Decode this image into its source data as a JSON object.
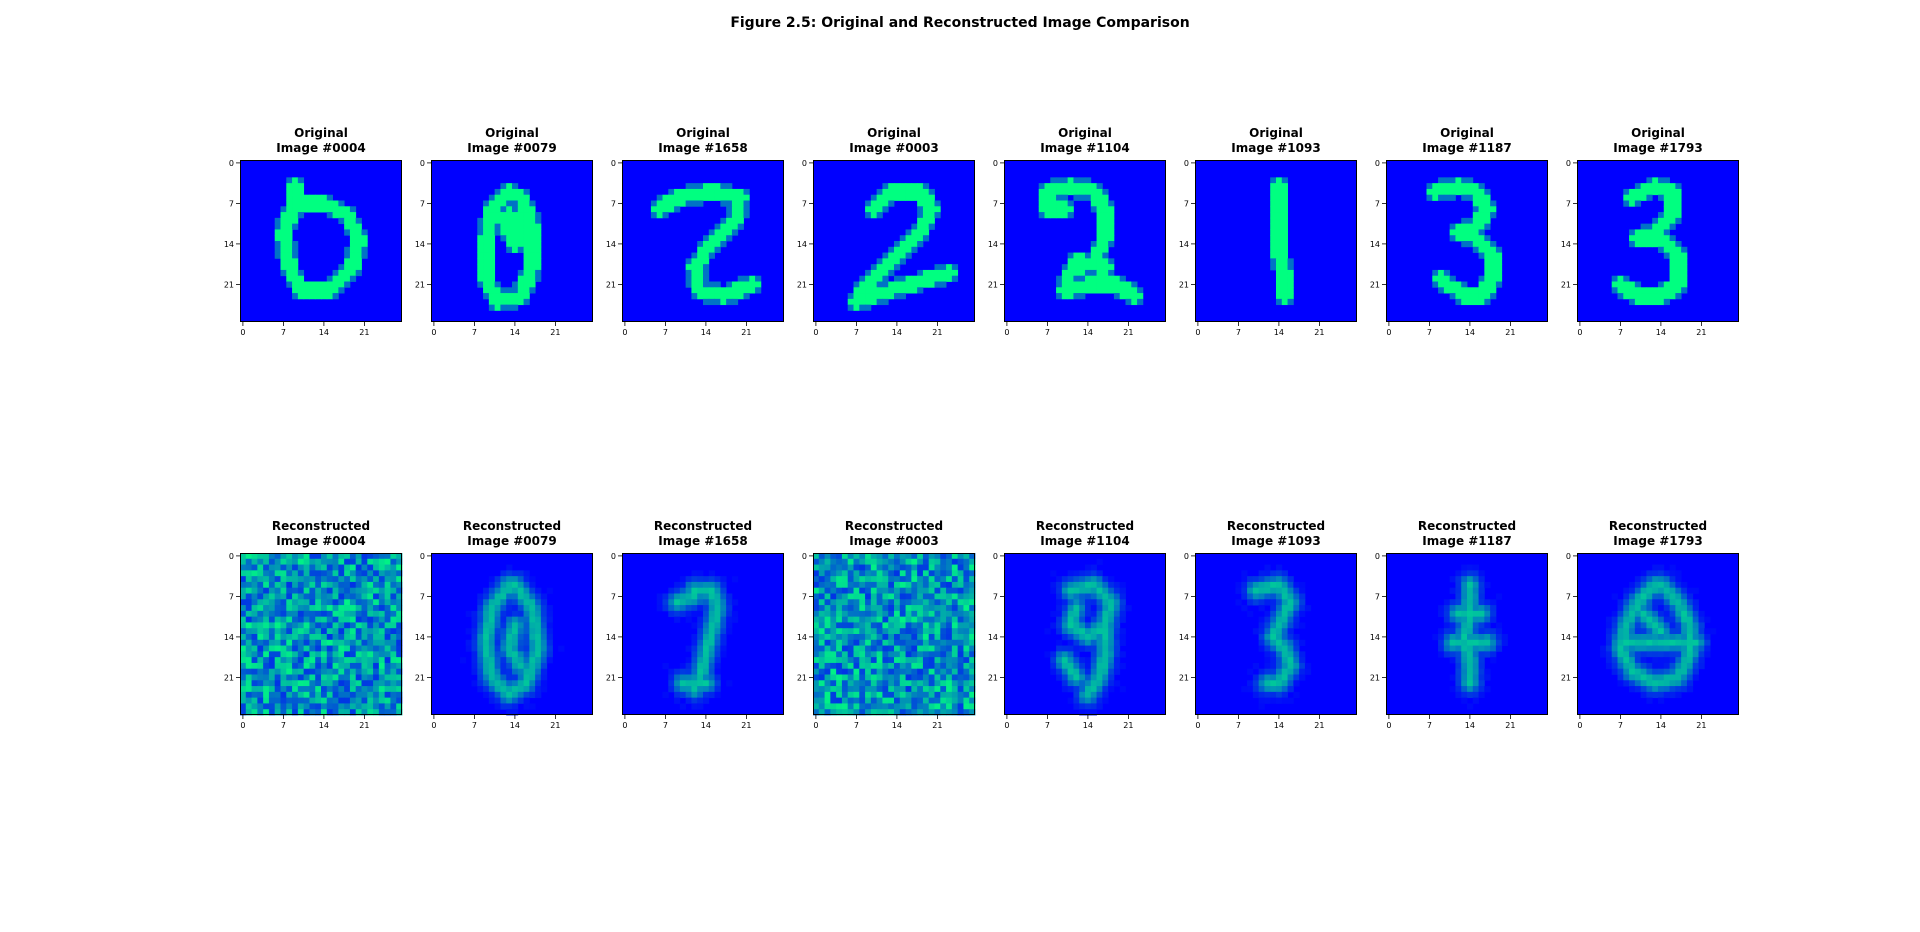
{
  "figure_title": "Figure 2.5: Original and Reconstructed Image Comparison",
  "colors": {
    "background": "#0000ff",
    "stroke": "#00ee80",
    "axis": "#000000"
  },
  "chart_data": {
    "type": "heatmap",
    "colormap": "winter",
    "image_size": [
      28,
      28
    ],
    "xticks": [
      "0",
      "7",
      "14",
      "21"
    ],
    "yticks": [
      "0",
      "7",
      "14",
      "21"
    ],
    "xlim": [
      -0.5,
      27.5
    ],
    "ylim": [
      27.5,
      -0.5
    ],
    "rows": [
      {
        "row_label": "Original",
        "panels": [
          {
            "line1": "Original",
            "line2": "Image #0004",
            "id": "0004",
            "style": "clean",
            "strokes": [
              [
                [
                  9,
                  4
                ],
                [
                  9,
                  7
                ],
                [
                  7,
                  12
                ],
                [
                  8,
                  18
                ],
                [
                  10,
                  22
                ],
                [
                  15,
                  22
                ],
                [
                  19,
                  18
                ],
                [
                  20,
                  13
                ],
                [
                  18,
                  9
                ],
                [
                  14,
                  7
                ],
                [
                  9,
                  7
                ]
              ]
            ]
          },
          {
            "line1": "Original",
            "line2": "Image #0079",
            "id": "0079",
            "style": "clean",
            "strokes": [
              [
                [
                  13,
                  5
                ],
                [
                  10,
                  8
                ],
                [
                  9,
                  14
                ],
                [
                  9,
                  20
                ],
                [
                  11,
                  24
                ],
                [
                  15,
                  23
                ],
                [
                  17,
                  18
                ],
                [
                  17,
                  11
                ],
                [
                  15,
                  6
                ],
                [
                  13,
                  5
                ]
              ],
              [
                [
                  12,
                  10
                ],
                [
                  14,
                  14
                ],
                [
                  15,
                  11
                ],
                [
                  13,
                  9
                ]
              ]
            ]
          },
          {
            "line1": "Original",
            "line2": "Image #1658",
            "id": "1658",
            "style": "clean",
            "strokes": [
              [
                [
                  6,
                  8
                ],
                [
                  9,
                  6
                ],
                [
                  15,
                  5
                ],
                [
                  20,
                  6
                ],
                [
                  19,
                  10
                ],
                [
                  15,
                  14
                ],
                [
                  12,
                  18
                ],
                [
                  13,
                  22
                ],
                [
                  17,
                  23
                ],
                [
                  22,
                  21
                ]
              ]
            ]
          },
          {
            "line1": "Original",
            "line2": "Image #0003",
            "id": "0003",
            "style": "clean",
            "strokes": [
              [
                [
                  10,
                  8
                ],
                [
                  13,
                  5
                ],
                [
                  18,
                  5
                ],
                [
                  20,
                  8
                ],
                [
                  18,
                  12
                ],
                [
                  13,
                  17
                ],
                [
                  9,
                  21
                ],
                [
                  7,
                  24
                ],
                [
                  13,
                  22
                ],
                [
                  23,
                  19
                ]
              ]
            ]
          },
          {
            "line1": "Original",
            "line2": "Image #1104",
            "id": "1104",
            "style": "clean",
            "strokes": [
              [
                [
                  7,
                  5
                ],
                [
                  11,
                  4
                ],
                [
                  15,
                  5
                ],
                [
                  17,
                  8
                ],
                [
                  17,
                  13
                ],
                [
                  15,
                  17
                ],
                [
                  11,
                  19
                ],
                [
                  10,
                  22
                ],
                [
                  15,
                  21
                ],
                [
                  19,
                  21
                ],
                [
                  22,
                  23
                ]
              ],
              [
                [
                  7,
                  5
                ],
                [
                  7,
                  8
                ],
                [
                  10,
                  8
                ]
              ],
              [
                [
                  12,
                  17
                ],
                [
                  17,
                  18
                ]
              ]
            ]
          },
          {
            "line1": "Original",
            "line2": "Image #1093",
            "id": "1093",
            "style": "clean",
            "strokes": [
              [
                [
                  14,
                  4
                ],
                [
                  14,
                  9
                ],
                [
                  14,
                  15
                ],
                [
                  15,
                  20
                ],
                [
                  15,
                  23
                ]
              ]
            ]
          },
          {
            "line1": "Original",
            "line2": "Image #1187",
            "id": "1187",
            "style": "clean",
            "strokes": [
              [
                [
                  8,
                  5
                ],
                [
                  12,
                  4
                ],
                [
                  15,
                  5
                ],
                [
                  17,
                  8
                ],
                [
                  15,
                  11
                ],
                [
                  12,
                  12
                ],
                [
                  15,
                  13
                ],
                [
                  18,
                  16
                ],
                [
                  18,
                  20
                ],
                [
                  16,
                  23
                ],
                [
                  13,
                  23
                ],
                [
                  9,
                  20
                ]
              ]
            ]
          },
          {
            "line1": "Original",
            "line2": "Image #1793",
            "id": "1793",
            "style": "clean",
            "strokes": [
              [
                [
                  9,
                  6
                ],
                [
                  13,
                  4
                ],
                [
                  16,
                  5
                ],
                [
                  16,
                  9
                ],
                [
                  13,
                  12
                ],
                [
                  10,
                  13
                ],
                [
                  14,
                  13
                ],
                [
                  17,
                  16
                ],
                [
                  17,
                  21
                ],
                [
                  14,
                  23
                ],
                [
                  10,
                  23
                ],
                [
                  7,
                  21
                ]
              ]
            ]
          }
        ]
      },
      {
        "row_label": "Reconstructed",
        "panels": [
          {
            "line1": "Reconstructed",
            "line2": "Image #0004",
            "id": "0004",
            "style": "noise",
            "strokes": []
          },
          {
            "line1": "Reconstructed",
            "line2": "Image #0079",
            "id": "0079",
            "style": "blur",
            "strokes": [
              [
                [
                  13,
                  5
                ],
                [
                  10,
                  9
                ],
                [
                  9,
                  15
                ],
                [
                  10,
                  21
                ],
                [
                  13,
                  24
                ],
                [
                  16,
                  22
                ],
                [
                  18,
                  16
                ],
                [
                  17,
                  9
                ],
                [
                  14,
                  5
                ]
              ],
              [
                [
                  14,
                  12
                ],
                [
                  13,
                  16
                ],
                [
                  15,
                  19
                ]
              ]
            ]
          },
          {
            "line1": "Reconstructed",
            "line2": "Image #1658",
            "id": "1658",
            "style": "blur",
            "strokes": [
              [
                [
                  12,
                  6
                ],
                [
                  15,
                  6
                ],
                [
                  16,
                  9
                ],
                [
                  15,
                  13
                ],
                [
                  14,
                  17
                ],
                [
                  13,
                  21
                ],
                [
                  12,
                  23
                ]
              ],
              [
                [
                  9,
                  8
                ],
                [
                  12,
                  7
                ]
              ],
              [
                [
                  10,
                  22
                ],
                [
                  14,
                  22
                ]
              ]
            ]
          },
          {
            "line1": "Reconstructed",
            "line2": "Image #0003",
            "id": "0003",
            "style": "noise",
            "strokes": []
          },
          {
            "line1": "Reconstructed",
            "line2": "Image #1104",
            "id": "1104",
            "style": "blur",
            "strokes": [
              [
                [
                  11,
                  6
                ],
                [
                  15,
                  5
                ],
                [
                  18,
                  8
                ],
                [
                  17,
                  12
                ],
                [
                  14,
                  14
                ],
                [
                  11,
                  12
                ],
                [
                  12,
                  9
                ]
              ],
              [
                [
                  17,
                  12
                ],
                [
                  17,
                  17
                ],
                [
                  16,
                  21
                ],
                [
                  14,
                  24
                ]
              ],
              [
                [
                  10,
                  18
                ],
                [
                  12,
                  21
                ]
              ]
            ]
          },
          {
            "line1": "Reconstructed",
            "line2": "Image #1093",
            "id": "1093",
            "style": "blur",
            "strokes": [
              [
                [
                  10,
                  6
                ],
                [
                  14,
                  5
                ],
                [
                  16,
                  8
                ],
                [
                  14,
                  12
                ],
                [
                  13,
                  14
                ],
                [
                  15,
                  16
                ],
                [
                  16,
                  19
                ],
                [
                  14,
                  22
                ],
                [
                  12,
                  22
                ]
              ]
            ]
          },
          {
            "line1": "Reconstructed",
            "line2": "Image #1187",
            "id": "1187",
            "style": "blur",
            "strokes": [
              [
                [
                  14,
                  5
                ],
                [
                  14,
                  10
                ],
                [
                  13,
                  14
                ],
                [
                  14,
                  18
                ],
                [
                  14,
                  22
                ]
              ],
              [
                [
                  12,
                  10
                ],
                [
                  16,
                  10
                ]
              ],
              [
                [
                  11,
                  15
                ],
                [
                  17,
                  15
                ]
              ]
            ]
          },
          {
            "line1": "Reconstructed",
            "line2": "Image #1793",
            "id": "1793",
            "style": "blur",
            "strokes": [
              [
                [
                  13,
                  5
                ],
                [
                  10,
                  8
                ],
                [
                  8,
                  12
                ],
                [
                  7,
                  16
                ],
                [
                  9,
                  20
                ],
                [
                  13,
                  22
                ],
                [
                  17,
                  21
                ],
                [
                  19,
                  17
                ],
                [
                  19,
                  12
                ],
                [
                  17,
                  8
                ],
                [
                  14,
                  5
                ]
              ],
              [
                [
                  8,
                  15
                ],
                [
                  14,
                  15
                ],
                [
                  20,
                  15
                ]
              ],
              [
                [
                  11,
                  10
                ],
                [
                  14,
                  13
                ]
              ]
            ]
          }
        ]
      }
    ]
  }
}
